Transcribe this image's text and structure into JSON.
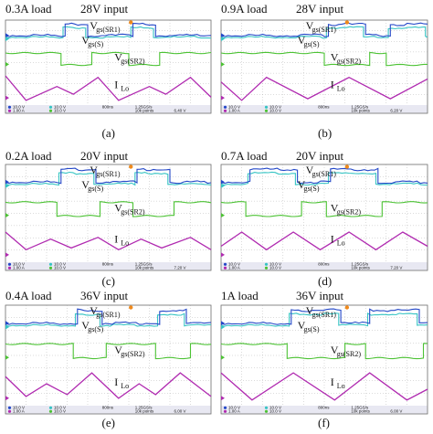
{
  "panels": [
    {
      "id": "a",
      "title": "0.3A load",
      "input": "28V input",
      "caption": "(a)",
      "labels": {
        "sr1": "V",
        "sr1_sub": "gs(SR1)",
        "s": "V",
        "s_sub": "gs(S)",
        "sr2": "V",
        "sr2_sub": "gs(SR2)",
        "ilo": "I",
        "ilo_sub": "Lo"
      },
      "status": {
        "ch1": "10.0 V",
        "ch2": "10.0 V",
        "ch3": "10.0 V",
        "ch4": "1.00 A",
        "time": "800ns",
        "srate": "1.25GS/s",
        "points": "10k points",
        "trig": "6.40 V"
      }
    },
    {
      "id": "b",
      "title": "0.9A load",
      "input": "28V input",
      "caption": "(b)",
      "labels": {
        "sr1": "V",
        "sr1_sub": "gs(SR1)",
        "s": "V",
        "s_sub": "gs(S)",
        "sr2": "V",
        "sr2_sub": "gs(SR2)",
        "ilo": "I",
        "ilo_sub": "Lo"
      },
      "status": {
        "ch1": "10.0 V",
        "ch2": "10.0 V",
        "ch3": "10.0 V",
        "ch4": "1.00 A",
        "time": "800ns",
        "srate": "1.25GS/s",
        "points": "10k points",
        "trig": "6.20 V"
      }
    },
    {
      "id": "c",
      "title": "0.2A load",
      "input": "20V input",
      "caption": "(c)",
      "labels": {
        "sr1": "V",
        "sr1_sub": "gs(SR1)",
        "s": "V",
        "s_sub": "gs(S)",
        "sr2": "V",
        "sr2_sub": "gs(SR2)",
        "ilo": "I",
        "ilo_sub": "Lo"
      },
      "status": {
        "ch1": "10.0 V",
        "ch2": "10.0 V",
        "ch3": "10.0 V",
        "ch4": "1.00 A",
        "time": "800ns",
        "srate": "1.25GS/s",
        "points": "10k points",
        "trig": "7.20 V"
      }
    },
    {
      "id": "d",
      "title": "0.7A load",
      "input": "20V input",
      "caption": "(d)",
      "labels": {
        "sr1": "V",
        "sr1_sub": "gs(SR1)",
        "s": "V",
        "s_sub": "gs(S)",
        "sr2": "V",
        "sr2_sub": "gs(SR2)",
        "ilo": "I",
        "ilo_sub": "Lo"
      },
      "status": {
        "ch1": "10.0 V",
        "ch2": "10.0 V",
        "ch3": "10.0 V",
        "ch4": "1.00 A",
        "time": "800ns",
        "srate": "1.25GS/s",
        "points": "10k points",
        "trig": "7.20 V"
      }
    },
    {
      "id": "e",
      "title": "0.4A load",
      "input": "36V input",
      "caption": "(e)",
      "labels": {
        "sr1": "V",
        "sr1_sub": "gs(SR1)",
        "s": "V",
        "s_sub": "gs(S)",
        "sr2": "V",
        "sr2_sub": "gs(SR2)",
        "ilo": "I",
        "ilo_sub": "Lo"
      },
      "status": {
        "ch1": "10.0 V",
        "ch2": "10.0 V",
        "ch3": "10.0 V",
        "ch4": "1.00 A",
        "time": "800ns",
        "srate": "1.25GS/s",
        "points": "10k points",
        "trig": "6.00 V"
      }
    },
    {
      "id": "f",
      "title": "1A load",
      "input": "36V input",
      "caption": "(f)",
      "labels": {
        "sr1": "V",
        "sr1_sub": "gs(SR1)",
        "s": "V",
        "s_sub": "gs(S)",
        "sr2": "V",
        "sr2_sub": "gs(SR2)",
        "ilo": "I",
        "ilo_sub": "Lo"
      },
      "status": {
        "ch1": "10.0 V",
        "ch2": "10.0 V",
        "ch3": "10.0 V",
        "ch4": "1.00 A",
        "time": "800ns",
        "srate": "1.25GS/s",
        "points": "10k points",
        "trig": "6.00 V"
      }
    }
  ],
  "colors": {
    "sr1": "#2448c8",
    "s": "#37c4c4",
    "sr2": "#4cc234",
    "ilo": "#b02ab0",
    "grid": "#9a9a9a",
    "statusbar": "#e8e8f2"
  },
  "chart_data": {
    "type": "line",
    "note_series": [
      "Vgs(SR1)",
      "Vgs(S)",
      "Vgs(SR2)",
      "ILo"
    ],
    "panels": [
      {
        "panel": "a",
        "switching": [
          {
            "on": 0.29,
            "off": 0.4
          },
          {
            "on": 0.62,
            "off": 0.73
          }
        ],
        "ilo": [
          [
            0,
            0.9
          ],
          [
            0.1,
            0.1
          ],
          [
            0.25,
            0.55
          ],
          [
            0.33,
            0.3
          ],
          [
            0.45,
            0.85
          ],
          [
            0.55,
            0.1
          ],
          [
            0.7,
            0.55
          ],
          [
            0.78,
            0.3
          ],
          [
            0.9,
            0.85
          ],
          [
            1.0,
            0.2
          ]
        ]
      },
      {
        "panel": "b",
        "switching": [
          {
            "on": 0.52,
            "off": 0.7
          },
          {
            "on": 0.82,
            "off": 1.0
          }
        ],
        "ilo": [
          [
            0,
            0.7
          ],
          [
            0.1,
            0.1
          ],
          [
            0.22,
            0.85
          ],
          [
            0.42,
            0.15
          ],
          [
            0.62,
            0.85
          ],
          [
            0.82,
            0.15
          ],
          [
            1.0,
            0.8
          ]
        ]
      },
      {
        "panel": "c",
        "switching": [
          {
            "on": 0.27,
            "off": 0.44
          },
          {
            "on": 0.64,
            "off": 0.8
          }
        ],
        "ilo": [
          [
            0,
            0.8
          ],
          [
            0.1,
            0.3
          ],
          [
            0.22,
            0.6
          ],
          [
            0.32,
            0.35
          ],
          [
            0.45,
            0.65
          ],
          [
            0.55,
            0.3
          ],
          [
            0.66,
            0.6
          ],
          [
            0.76,
            0.35
          ],
          [
            0.9,
            0.65
          ],
          [
            1.0,
            0.3
          ]
        ]
      },
      {
        "panel": "d",
        "switching": [
          {
            "on": 0.14,
            "off": 0.37
          },
          {
            "on": 0.53,
            "off": 0.76
          }
        ],
        "ilo": [
          [
            0,
            0.4
          ],
          [
            0.1,
            0.8
          ],
          [
            0.22,
            0.3
          ],
          [
            0.35,
            0.8
          ],
          [
            0.48,
            0.3
          ],
          [
            0.62,
            0.8
          ],
          [
            0.75,
            0.3
          ],
          [
            0.88,
            0.8
          ],
          [
            1.0,
            0.4
          ]
        ]
      },
      {
        "panel": "e",
        "switching": [
          {
            "on": 0.35,
            "off": 0.47
          },
          {
            "on": 0.75,
            "off": 0.88
          }
        ],
        "ilo": [
          [
            0,
            0.75
          ],
          [
            0.1,
            0.2
          ],
          [
            0.2,
            0.55
          ],
          [
            0.3,
            0.25
          ],
          [
            0.42,
            0.85
          ],
          [
            0.55,
            0.15
          ],
          [
            0.65,
            0.55
          ],
          [
            0.73,
            0.25
          ],
          [
            0.85,
            0.85
          ],
          [
            1.0,
            0.2
          ]
        ]
      },
      {
        "panel": "f",
        "switching": [
          {
            "on": 0.34,
            "off": 0.58
          },
          {
            "on": 0.72,
            "off": 0.96
          }
        ],
        "ilo": [
          [
            0,
            0.85
          ],
          [
            0.15,
            0.1
          ],
          [
            0.35,
            0.85
          ],
          [
            0.55,
            0.1
          ],
          [
            0.72,
            0.85
          ],
          [
            0.9,
            0.1
          ],
          [
            1.0,
            0.4
          ]
        ]
      }
    ]
  }
}
